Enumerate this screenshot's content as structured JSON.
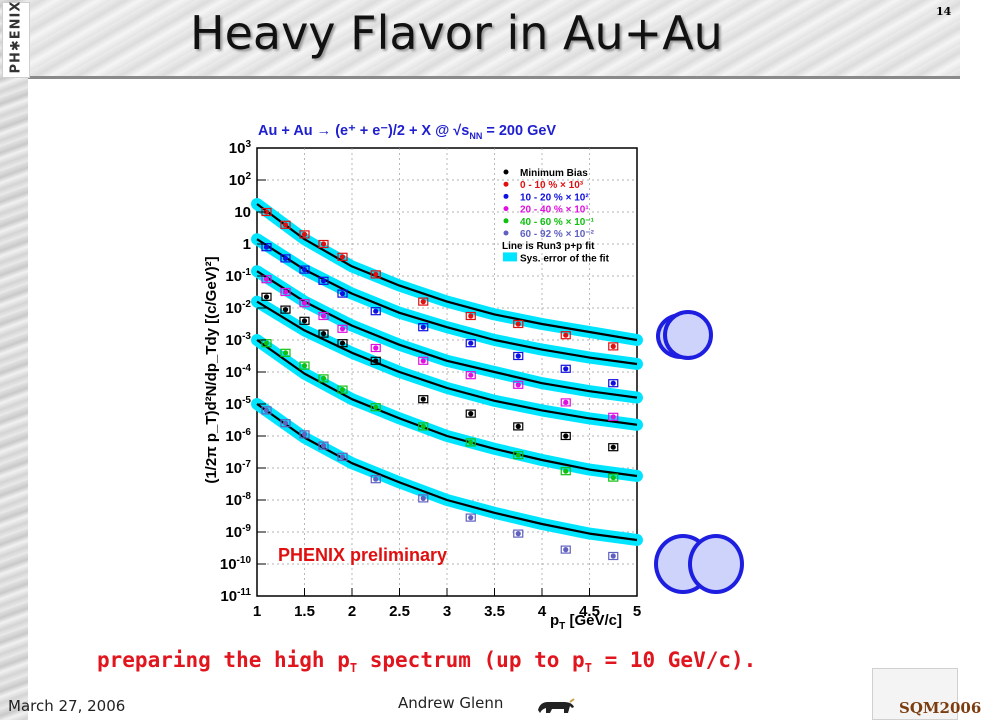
{
  "slide": {
    "title": "Heavy Flavor in Au+Au",
    "number": "14",
    "phenix_logo_text": "PH✱ENIX",
    "caption_part1": "preparing the high p",
    "caption_sub1": "T",
    "caption_part2": " spectrum (up to p",
    "caption_sub2": "T",
    "caption_part3": " = 10 GeV/c).",
    "date": "March 27, 2006",
    "author": "Andrew Glenn",
    "sqm_logo_text": "SQM2006",
    "caption_color": "#e0151d"
  },
  "chart_data": {
    "type": "scatter",
    "title_text": "Au + Au → (e⁺ + e⁻)/2 + X @ √s",
    "title_sub": "NN",
    "title_tail": " = 200 GeV",
    "xlabel": "p",
    "xlabel_sub": "T",
    "xlabel_unit": " [GeV/c]",
    "ylabel": "(1/2π p_T)d²N/dp_Tdy [(c/GeV)²]",
    "xlim": [
      1,
      5
    ],
    "ylim_log10": [
      -11,
      3
    ],
    "log_y": true,
    "grid": true,
    "x_ticks": [
      "1",
      "1.5",
      "2",
      "2.5",
      "3",
      "3.5",
      "4",
      "4.5",
      "5"
    ],
    "y_ticks": [
      {
        "base": "10",
        "exp": "3"
      },
      {
        "base": "10",
        "exp": "2"
      },
      {
        "base": "10",
        "exp": ""
      },
      {
        "base": "1",
        "exp": ""
      },
      {
        "base": "10",
        "exp": "-1"
      },
      {
        "base": "10",
        "exp": "-2"
      },
      {
        "base": "10",
        "exp": "-3"
      },
      {
        "base": "10",
        "exp": "-4"
      },
      {
        "base": "10",
        "exp": "-5"
      },
      {
        "base": "10",
        "exp": "-6"
      },
      {
        "base": "10",
        "exp": "-7"
      },
      {
        "base": "10",
        "exp": "-8"
      },
      {
        "base": "10",
        "exp": "-9"
      },
      {
        "base": "10",
        "exp": "-10"
      },
      {
        "base": "10",
        "exp": "-11"
      }
    ],
    "annotation": "PHENIX preliminary",
    "legend_position": "top-right",
    "legend": [
      {
        "label": "Minimum Bias",
        "color": "#000000",
        "marker": "dot"
      },
      {
        "label": "0 - 10 % × 10³",
        "color": "#e01010",
        "marker": "dot"
      },
      {
        "label": "10 - 20 % × 10²",
        "color": "#1010e0",
        "marker": "dot"
      },
      {
        "label": "20 - 40 % × 10¹",
        "color": "#e010e0",
        "marker": "dot"
      },
      {
        "label": "40 - 60 % × 10⁻¹",
        "color": "#10c010",
        "marker": "dot"
      },
      {
        "label": "60 - 92 % × 10⁻²",
        "color": "#6060c0",
        "marker": "dot"
      },
      {
        "label": "Line is Run3 p+p fit",
        "color": "#000000",
        "marker": "none"
      },
      {
        "label": "Sys. error of the fit",
        "color": "#00e5ff",
        "marker": "box"
      }
    ],
    "band_color": "#00e5ff",
    "fit_curves_log10": [
      {
        "points": [
          [
            1,
            1.25
          ],
          [
            1.5,
            0.15
          ],
          [
            2,
            -0.7
          ],
          [
            2.5,
            -1.3
          ],
          [
            3,
            -1.8
          ],
          [
            3.5,
            -2.2
          ],
          [
            4,
            -2.5
          ],
          [
            4.5,
            -2.75
          ],
          [
            5,
            -3.0
          ]
        ]
      },
      {
        "points": [
          [
            1,
            0.15
          ],
          [
            1.5,
            -0.8
          ],
          [
            2,
            -1.55
          ],
          [
            2.5,
            -2.15
          ],
          [
            3,
            -2.6
          ],
          [
            3.5,
            -3.0
          ],
          [
            4,
            -3.3
          ],
          [
            4.5,
            -3.55
          ],
          [
            5,
            -3.75
          ]
        ]
      },
      {
        "points": [
          [
            1,
            -0.85
          ],
          [
            1.5,
            -1.8
          ],
          [
            2,
            -2.55
          ],
          [
            2.5,
            -3.15
          ],
          [
            3,
            -3.65
          ],
          [
            3.5,
            -4.0
          ],
          [
            4,
            -4.35
          ],
          [
            4.5,
            -4.6
          ],
          [
            5,
            -4.8
          ]
        ]
      },
      {
        "points": [
          [
            1,
            -1.8
          ],
          [
            1.5,
            -2.7
          ],
          [
            2,
            -3.4
          ],
          [
            2.5,
            -4.0
          ],
          [
            3,
            -4.5
          ],
          [
            3.5,
            -4.9
          ],
          [
            4,
            -5.2
          ],
          [
            4.5,
            -5.45
          ],
          [
            5,
            -5.65
          ]
        ]
      },
      {
        "points": [
          [
            1,
            -3.0
          ],
          [
            1.5,
            -4.05
          ],
          [
            2,
            -4.85
          ],
          [
            2.5,
            -5.45
          ],
          [
            3,
            -6.0
          ],
          [
            3.5,
            -6.4
          ],
          [
            4,
            -6.75
          ],
          [
            4.5,
            -7.05
          ],
          [
            5,
            -7.25
          ]
        ]
      },
      {
        "points": [
          [
            1,
            -5.0
          ],
          [
            1.5,
            -6.05
          ],
          [
            2,
            -6.85
          ],
          [
            2.5,
            -7.45
          ],
          [
            3,
            -8.0
          ],
          [
            3.5,
            -8.4
          ],
          [
            4,
            -8.75
          ],
          [
            4.5,
            -9.05
          ],
          [
            5,
            -9.25
          ]
        ]
      }
    ],
    "series": [
      {
        "color": "#e01010",
        "points": [
          [
            1.1,
            1.0
          ],
          [
            1.3,
            0.6
          ],
          [
            1.5,
            0.3
          ],
          [
            1.7,
            0.0
          ],
          [
            1.9,
            -0.4
          ],
          [
            2.25,
            -0.95
          ],
          [
            2.75,
            -1.8
          ],
          [
            3.25,
            -2.25
          ],
          [
            3.75,
            -2.5
          ],
          [
            4.25,
            -2.85
          ],
          [
            4.75,
            -3.2
          ]
        ]
      },
      {
        "color": "#1010e0",
        "points": [
          [
            1.1,
            -0.1
          ],
          [
            1.3,
            -0.45
          ],
          [
            1.5,
            -0.8
          ],
          [
            1.7,
            -1.15
          ],
          [
            1.9,
            -1.55
          ],
          [
            2.25,
            -2.1
          ],
          [
            2.75,
            -2.6
          ],
          [
            3.25,
            -3.1
          ],
          [
            3.75,
            -3.5
          ],
          [
            4.25,
            -3.9
          ],
          [
            4.75,
            -4.35
          ]
        ]
      },
      {
        "color": "#e010e0",
        "points": [
          [
            1.1,
            -1.1
          ],
          [
            1.3,
            -1.5
          ],
          [
            1.5,
            -1.85
          ],
          [
            1.7,
            -2.25
          ],
          [
            1.9,
            -2.65
          ],
          [
            2.25,
            -3.25
          ],
          [
            2.75,
            -3.65
          ],
          [
            3.25,
            -4.1
          ],
          [
            3.75,
            -4.4
          ],
          [
            4.25,
            -4.95
          ],
          [
            4.75,
            -5.4
          ]
        ]
      },
      {
        "color": "#000000",
        "points": [
          [
            1.1,
            -1.65
          ],
          [
            1.3,
            -2.05
          ],
          [
            1.5,
            -2.4
          ],
          [
            1.7,
            -2.8
          ],
          [
            1.9,
            -3.1
          ],
          [
            2.25,
            -3.65
          ],
          [
            2.75,
            -4.85
          ],
          [
            3.25,
            -5.3
          ],
          [
            3.75,
            -5.7
          ],
          [
            4.25,
            -6.0
          ],
          [
            4.75,
            -6.35
          ]
        ]
      },
      {
        "color": "#10c010",
        "points": [
          [
            1.1,
            -3.1
          ],
          [
            1.3,
            -3.4
          ],
          [
            1.5,
            -3.8
          ],
          [
            1.7,
            -4.2
          ],
          [
            1.9,
            -4.55
          ],
          [
            2.25,
            -5.1
          ],
          [
            2.75,
            -5.7
          ],
          [
            3.25,
            -6.2
          ],
          [
            3.75,
            -6.6
          ],
          [
            4.25,
            -7.1
          ],
          [
            4.75,
            -7.3
          ]
        ]
      },
      {
        "color": "#6060c0",
        "points": [
          [
            1.1,
            -5.2
          ],
          [
            1.3,
            -5.6
          ],
          [
            1.5,
            -5.95
          ],
          [
            1.7,
            -6.3
          ],
          [
            1.9,
            -6.65
          ],
          [
            2.25,
            -7.35
          ],
          [
            2.75,
            -7.95
          ],
          [
            3.25,
            -8.55
          ],
          [
            3.75,
            -9.05
          ],
          [
            4.25,
            -9.55
          ],
          [
            4.75,
            -9.75
          ]
        ]
      }
    ]
  },
  "figure_circles": [
    {
      "name": "circle-group-top"
    },
    {
      "name": "circle-group-bottom"
    }
  ]
}
